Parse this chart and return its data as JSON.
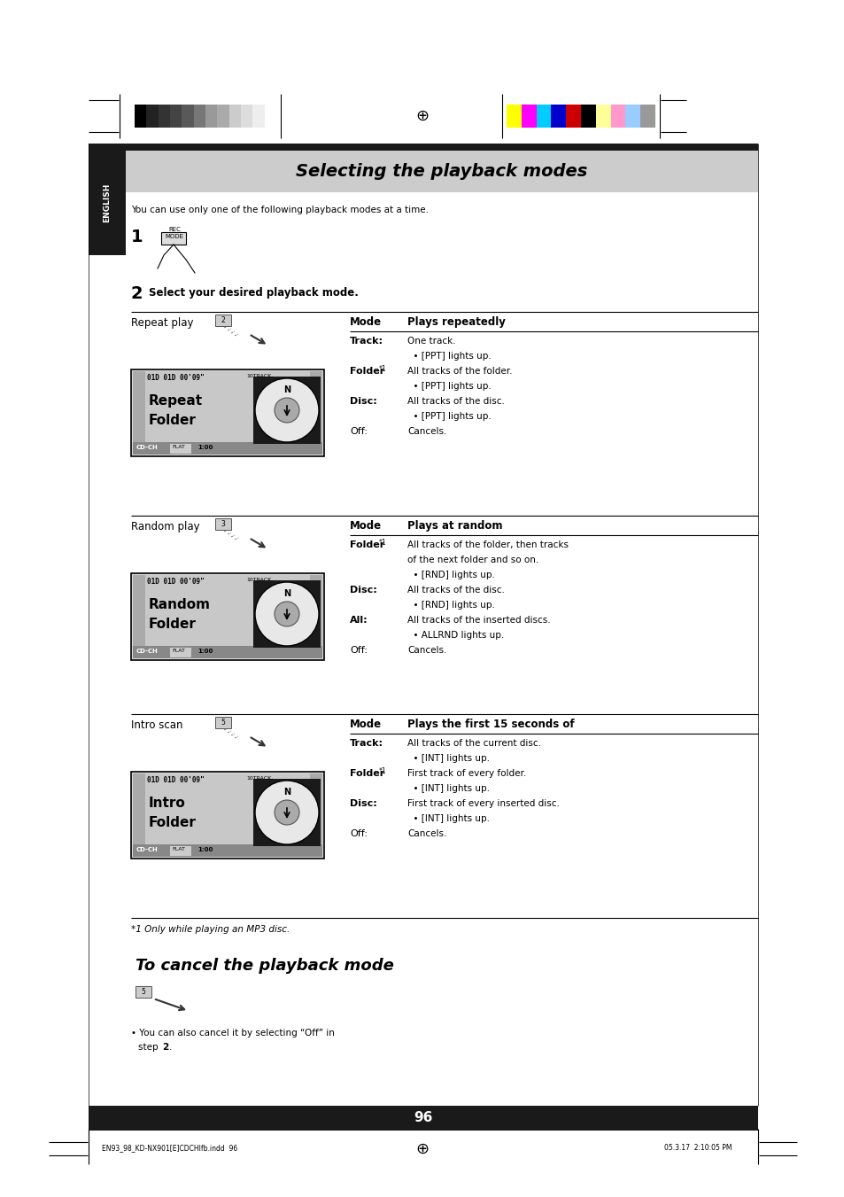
{
  "page_bg": "#ffffff",
  "title": "Selecting the playback modes",
  "title_bg": "#cccccc",
  "title_color": "#000000",
  "english_tab_bg": "#1a1a1a",
  "english_tab_color": "#ffffff",
  "english_tab_text": "ENGLISH",
  "header_bar_color": "#1a1a1a",
  "page_number": "96",
  "page_number_bg": "#1a1a1a",
  "page_number_color": "#ffffff",
  "intro_text": "You can use only one of the following playback modes at a time.",
  "step1_label": "1",
  "step2_label": "2",
  "step2_text": "Select your desired playback mode.",
  "sections": [
    {
      "left_label": "Repeat play",
      "screen_line1": "Repeat",
      "screen_line2": "Folder",
      "right_header_col1": "Mode",
      "right_header_col2": "Plays repeatedly",
      "rows": [
        {
          "label": "Track:",
          "bold": true,
          "sup": "",
          "text": "One track.",
          "indent": false
        },
        {
          "label": "",
          "bold": false,
          "sup": "",
          "text": "  • [PPT] lights up.",
          "indent": true
        },
        {
          "label": "Folder",
          "bold": true,
          "sup": "*1",
          "text": ": All tracks of the folder.",
          "indent": false
        },
        {
          "label": "",
          "bold": false,
          "sup": "",
          "text": "  • [PPT] lights up.",
          "indent": true
        },
        {
          "label": "Disc:",
          "bold": true,
          "sup": "",
          "text": "All tracks of the disc.",
          "indent": false
        },
        {
          "label": "",
          "bold": false,
          "sup": "",
          "text": "  • [PPT] lights up.",
          "indent": true
        },
        {
          "label": "Off:",
          "bold": false,
          "sup": "",
          "text": "Cancels.",
          "indent": false
        }
      ]
    },
    {
      "left_label": "Random play",
      "screen_line1": "Random",
      "screen_line2": "Folder",
      "right_header_col1": "Mode",
      "right_header_col2": "Plays at random",
      "rows": [
        {
          "label": "Folder",
          "bold": true,
          "sup": "*1",
          "text": ": All tracks of the folder, then tracks",
          "indent": false
        },
        {
          "label": "",
          "bold": false,
          "sup": "",
          "text": "of the next folder and so on.",
          "indent": true
        },
        {
          "label": "",
          "bold": false,
          "sup": "",
          "text": "  • [RND] lights up.",
          "indent": true
        },
        {
          "label": "Disc:",
          "bold": true,
          "sup": "",
          "text": "All tracks of the disc.",
          "indent": false
        },
        {
          "label": "",
          "bold": false,
          "sup": "",
          "text": "  • [RND] lights up.",
          "indent": true
        },
        {
          "label": "All:",
          "bold": true,
          "sup": "",
          "text": "All tracks of the inserted discs.",
          "indent": false
        },
        {
          "label": "",
          "bold": false,
          "sup": "",
          "text": "  • ALLRND lights up.",
          "indent": true
        },
        {
          "label": "Off:",
          "bold": false,
          "sup": "",
          "text": "Cancels.",
          "indent": false
        }
      ]
    },
    {
      "left_label": "Intro scan",
      "screen_line1": "Intro",
      "screen_line2": "Folder",
      "right_header_col1": "Mode",
      "right_header_col2": "Plays the first 15 seconds of",
      "rows": [
        {
          "label": "Track:",
          "bold": true,
          "sup": "",
          "text": "All tracks of the current disc.",
          "indent": false
        },
        {
          "label": "",
          "bold": false,
          "sup": "",
          "text": "  • [INT] lights up.",
          "indent": true
        },
        {
          "label": "Folder",
          "bold": true,
          "sup": "*1",
          "text": ": First track of every folder.",
          "indent": false
        },
        {
          "label": "",
          "bold": false,
          "sup": "",
          "text": "  • [INT] lights up.",
          "indent": true
        },
        {
          "label": "Disc:",
          "bold": true,
          "sup": "",
          "text": "First track of every inserted disc.",
          "indent": false
        },
        {
          "label": "",
          "bold": false,
          "sup": "",
          "text": "  • [INT] lights up.",
          "indent": true
        },
        {
          "label": "Off:",
          "bold": false,
          "sup": "",
          "text": "Cancels.",
          "indent": false
        }
      ]
    }
  ],
  "footnote": "*1 Only while playing an MP3 disc.",
  "cancel_title": "To cancel the playback mode",
  "cancel_text1": "• You can also cancel it by selecting “Off” in",
  "cancel_text2": "step ",
  "cancel_text2_bold": "2",
  "cancel_text2_after": ".",
  "bottom_filename": "EN93_98_KD-NX901[E]CDCHlfb.indd  96",
  "bottom_date": "05.3.17  2:10:05 PM",
  "color_bar_left": [
    "#000000",
    "#222222",
    "#333333",
    "#444444",
    "#595959",
    "#777777",
    "#999999",
    "#aaaaaa",
    "#cccccc",
    "#dddddd",
    "#eeeeee",
    "#ffffff"
  ],
  "color_bar_right": [
    "#ffff00",
    "#ff00ff",
    "#00ccff",
    "#0000cc",
    "#cc0000",
    "#000000",
    "#ffff99",
    "#ff99cc",
    "#99ccff",
    "#999999"
  ]
}
